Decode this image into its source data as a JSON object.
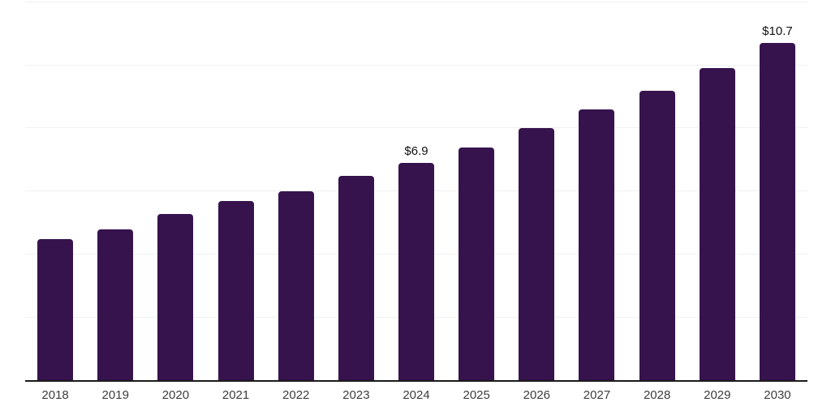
{
  "chart_data": {
    "type": "bar",
    "title": "",
    "xlabel": "",
    "ylabel": "",
    "categories": [
      "2018",
      "2019",
      "2020",
      "2021",
      "2022",
      "2023",
      "2024",
      "2025",
      "2026",
      "2027",
      "2028",
      "2029",
      "2030"
    ],
    "values": [
      4.5,
      4.8,
      5.3,
      5.7,
      6.0,
      6.5,
      6.9,
      7.4,
      8.0,
      8.6,
      9.2,
      9.9,
      10.7
    ],
    "point_labels": [
      "",
      "",
      "",
      "",
      "",
      "",
      "$6.9",
      "",
      "",
      "",
      "",
      "",
      "$10.7"
    ],
    "ylim": [
      0,
      12
    ],
    "gridline_step": 2,
    "grid": true,
    "legend": false,
    "colors": {
      "bar": "#36134D",
      "axis_line": "#1a1a1a",
      "gridline": "#f0f0f0",
      "tick_label": "#3d3d3d",
      "value_label": "#111111"
    }
  }
}
